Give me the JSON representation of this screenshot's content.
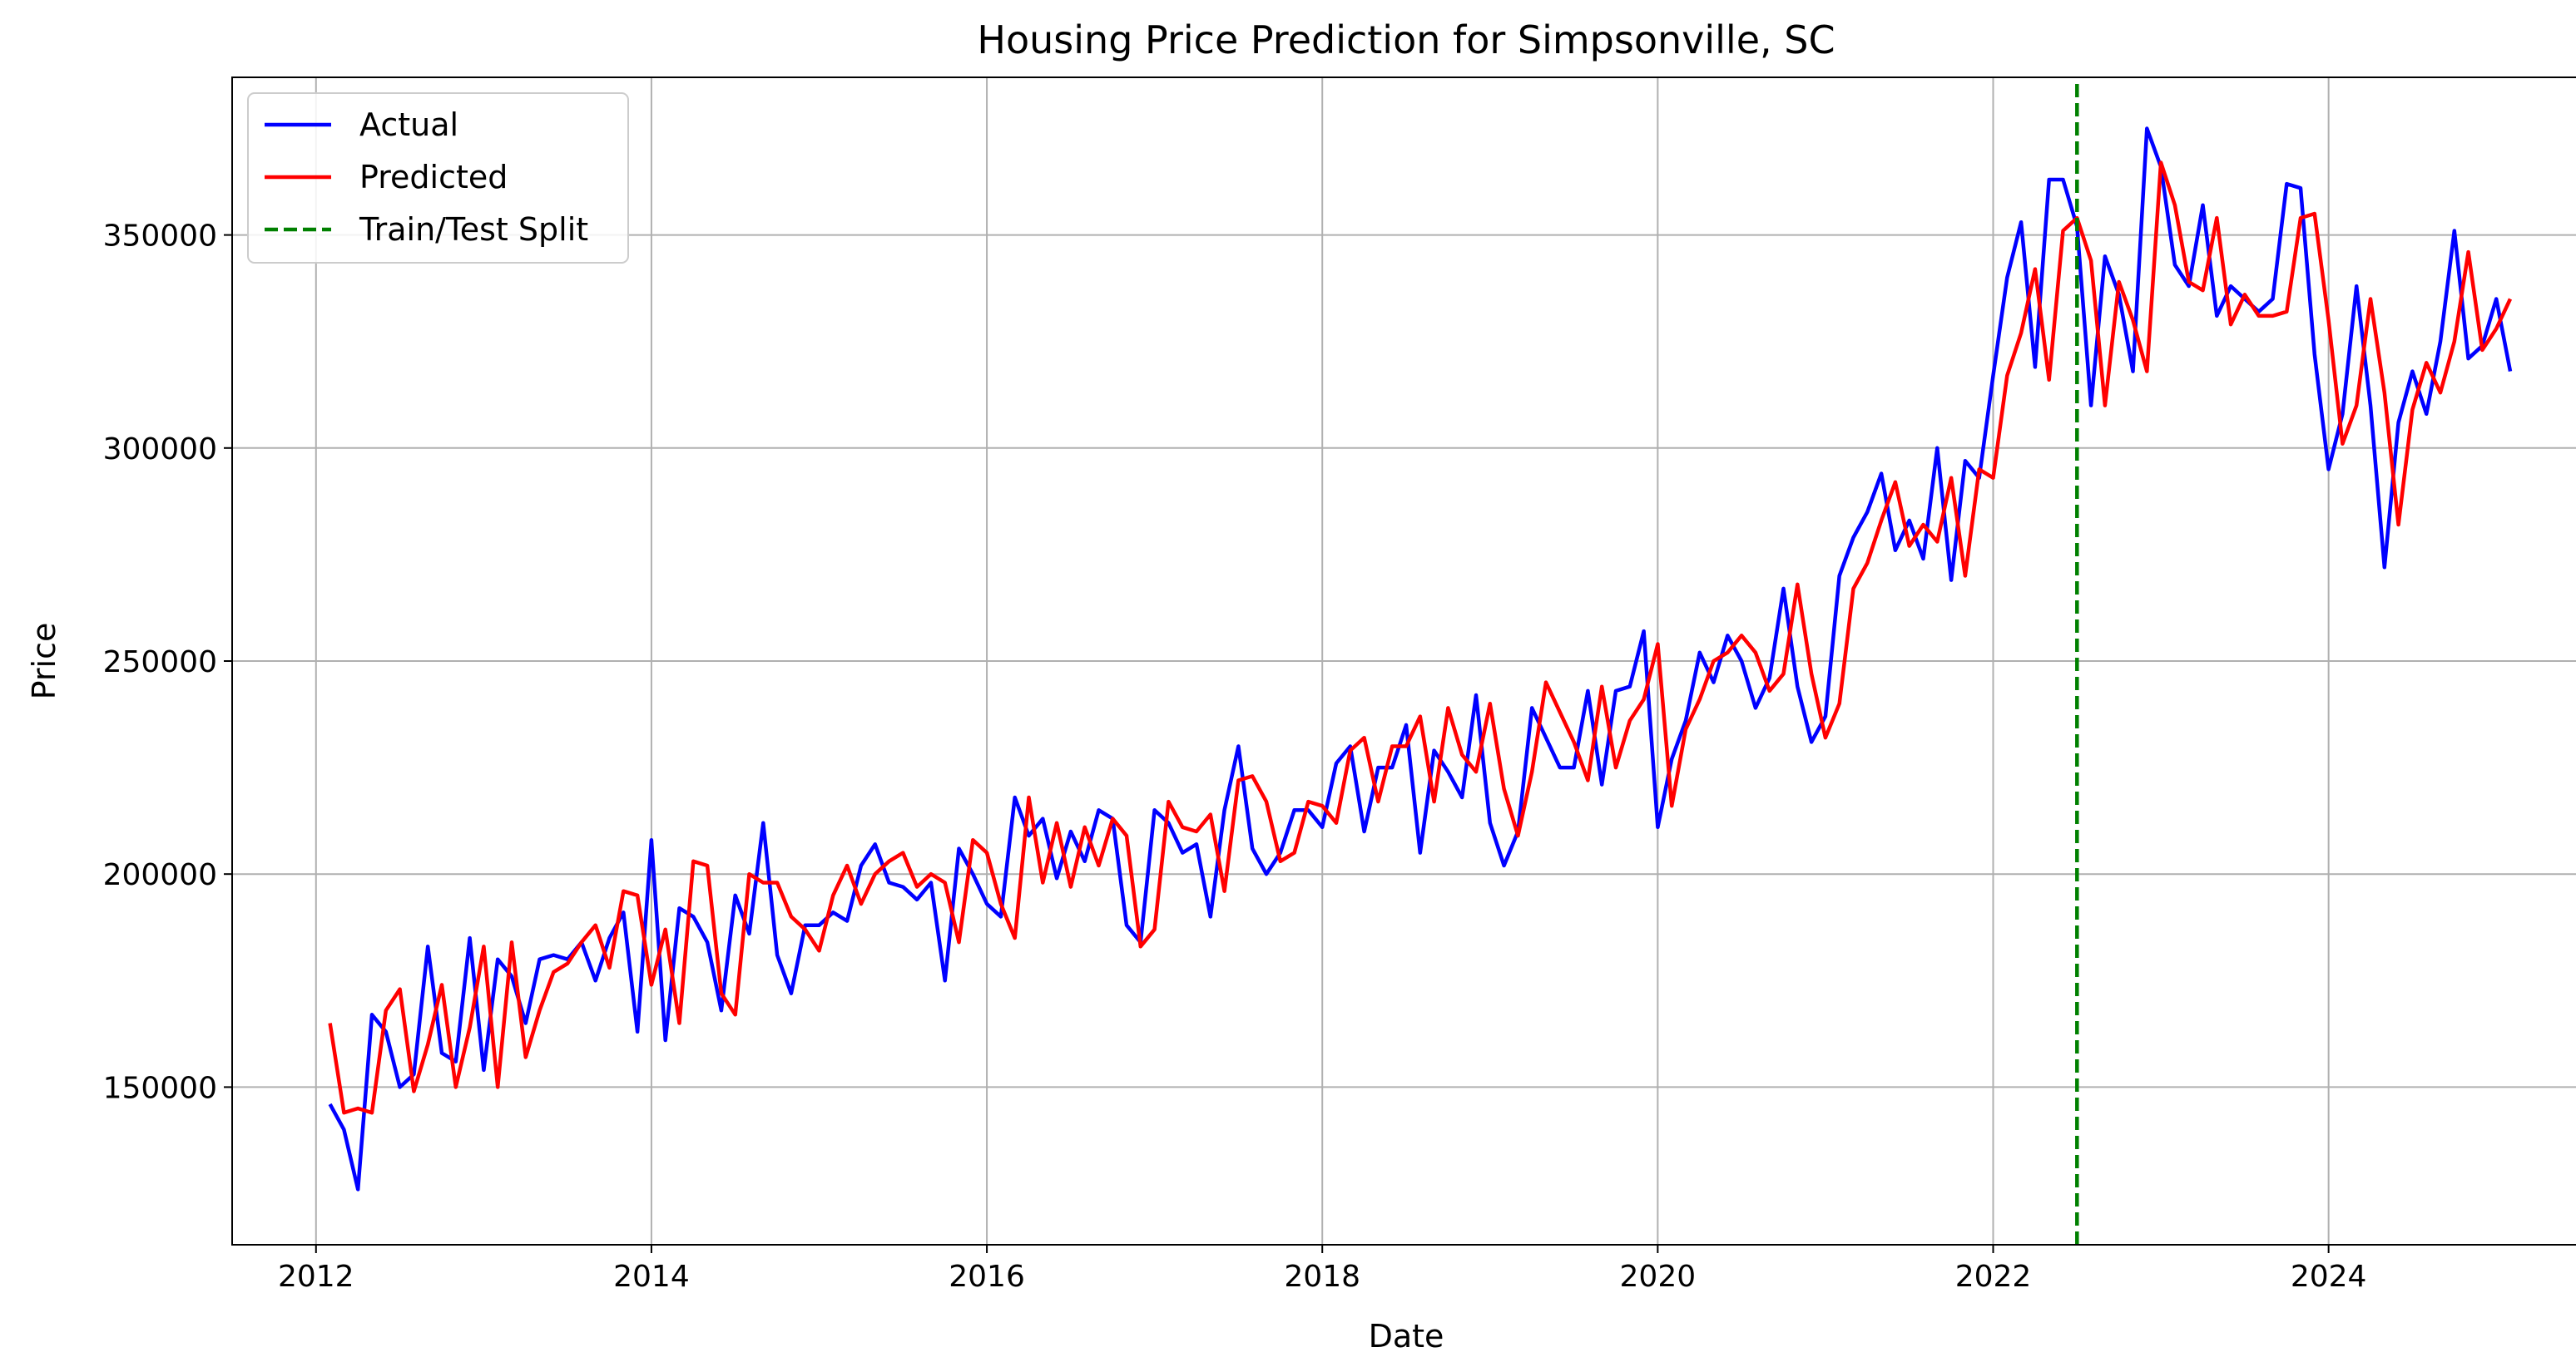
{
  "chart_data": {
    "type": "line",
    "title": "Housing Price Prediction for Simpsonville, SC",
    "xlabel": "Date",
    "ylabel": "Price",
    "x_axis_type": "date",
    "xlim": [
      "2011-07-01",
      "2025-07-01"
    ],
    "ylim": [
      113000,
      387000
    ],
    "x_ticks": [
      "2012",
      "2014",
      "2016",
      "2018",
      "2020",
      "2022",
      "2024"
    ],
    "y_ticks": [
      "150000",
      "200000",
      "250000",
      "300000",
      "350000"
    ],
    "grid": true,
    "legend_position": "top-left",
    "series": [
      {
        "name": "Actual",
        "color": "#0000ff",
        "x": [
          "2012-02",
          "2012-03",
          "2012-04",
          "2012-05",
          "2012-06",
          "2012-07",
          "2012-08",
          "2012-09",
          "2012-10",
          "2012-11",
          "2012-12",
          "2013-01",
          "2013-02",
          "2013-03",
          "2013-04",
          "2013-05",
          "2013-06",
          "2013-07",
          "2013-08",
          "2013-09",
          "2013-10",
          "2013-11",
          "2013-12",
          "2014-01",
          "2014-02",
          "2014-03",
          "2014-04",
          "2014-05",
          "2014-06",
          "2014-07",
          "2014-08",
          "2014-09",
          "2014-10",
          "2014-11",
          "2014-12",
          "2015-01",
          "2015-02",
          "2015-03",
          "2015-04",
          "2015-05",
          "2015-06",
          "2015-07",
          "2015-08",
          "2015-09",
          "2015-10",
          "2015-11",
          "2015-12",
          "2016-01",
          "2016-02",
          "2016-03",
          "2016-04",
          "2016-05",
          "2016-06",
          "2016-07",
          "2016-08",
          "2016-09",
          "2016-10",
          "2016-11",
          "2016-12",
          "2017-01",
          "2017-02",
          "2017-03",
          "2017-04",
          "2017-05",
          "2017-06",
          "2017-07",
          "2017-08",
          "2017-09",
          "2017-10",
          "2017-11",
          "2017-12",
          "2018-01",
          "2018-02",
          "2018-03",
          "2018-04",
          "2018-05",
          "2018-06",
          "2018-07",
          "2018-08",
          "2018-09",
          "2018-10",
          "2018-11",
          "2018-12",
          "2019-01",
          "2019-02",
          "2019-03",
          "2019-04",
          "2019-05",
          "2019-06",
          "2019-07",
          "2019-08",
          "2019-09",
          "2019-10",
          "2019-11",
          "2019-12",
          "2020-01",
          "2020-02",
          "2020-03",
          "2020-04",
          "2020-05",
          "2020-06",
          "2020-07",
          "2020-08",
          "2020-09",
          "2020-10",
          "2020-11",
          "2020-12",
          "2021-01",
          "2021-02",
          "2021-03",
          "2021-04",
          "2021-05",
          "2021-06",
          "2021-07",
          "2021-08",
          "2021-09",
          "2021-10",
          "2021-11",
          "2021-12",
          "2022-01",
          "2022-02",
          "2022-03",
          "2022-04",
          "2022-05",
          "2022-06",
          "2022-07",
          "2022-08",
          "2022-09",
          "2022-10",
          "2022-11",
          "2022-12",
          "2023-01",
          "2023-02",
          "2023-03",
          "2023-04",
          "2023-05",
          "2023-06",
          "2023-07",
          "2023-08",
          "2023-09",
          "2023-10",
          "2023-11",
          "2023-12",
          "2024-01",
          "2024-02",
          "2024-03",
          "2024-04",
          "2024-05",
          "2024-06",
          "2024-07",
          "2024-08",
          "2024-09",
          "2024-10",
          "2024-11",
          "2024-12",
          "2025-01",
          "2025-02"
        ],
        "y": [
          146000,
          140000,
          126000,
          167000,
          163000,
          150000,
          153000,
          183000,
          158000,
          156000,
          185000,
          154000,
          180000,
          176000,
          165000,
          180000,
          181000,
          180000,
          184000,
          175000,
          185000,
          191000,
          163000,
          208000,
          161000,
          192000,
          190000,
          184000,
          168000,
          195000,
          186000,
          212000,
          181000,
          172000,
          188000,
          188000,
          191000,
          189000,
          202000,
          207000,
          198000,
          197000,
          194000,
          198000,
          175000,
          206000,
          200000,
          193000,
          190000,
          218000,
          209000,
          213000,
          199000,
          210000,
          203000,
          215000,
          213000,
          188000,
          184000,
          215000,
          212000,
          205000,
          207000,
          190000,
          215000,
          230000,
          206000,
          200000,
          205000,
          215000,
          215000,
          211000,
          226000,
          230000,
          210000,
          225000,
          225000,
          235000,
          205000,
          229000,
          224000,
          218000,
          242000,
          212000,
          202000,
          210000,
          239000,
          232000,
          225000,
          225000,
          243000,
          221000,
          243000,
          244000,
          257000,
          211000,
          227000,
          236000,
          252000,
          245000,
          256000,
          250000,
          239000,
          246000,
          267000,
          244000,
          231000,
          237000,
          270000,
          279000,
          285000,
          294000,
          276000,
          283000,
          274000,
          300000,
          269000,
          297000,
          293000,
          317000,
          340000,
          353000,
          319000,
          363000,
          363000,
          352000,
          310000,
          345000,
          336000,
          318000,
          375000,
          366000,
          343000,
          338000,
          357000,
          331000,
          338000,
          335000,
          332000,
          335000,
          362000,
          361000,
          322000,
          295000,
          308000,
          338000,
          310000,
          272000,
          306000,
          318000,
          308000,
          325000,
          351000,
          321000,
          324000,
          335000,
          318000
        ]
      },
      {
        "name": "Predicted",
        "color": "#ff0000",
        "x": [
          "2012-02",
          "2012-03",
          "2012-04",
          "2012-05",
          "2012-06",
          "2012-07",
          "2012-08",
          "2012-09",
          "2012-10",
          "2012-11",
          "2012-12",
          "2013-01",
          "2013-02",
          "2013-03",
          "2013-04",
          "2013-05",
          "2013-06",
          "2013-07",
          "2013-08",
          "2013-09",
          "2013-10",
          "2013-11",
          "2013-12",
          "2014-01",
          "2014-02",
          "2014-03",
          "2014-04",
          "2014-05",
          "2014-06",
          "2014-07",
          "2014-08",
          "2014-09",
          "2014-10",
          "2014-11",
          "2014-12",
          "2015-01",
          "2015-02",
          "2015-03",
          "2015-04",
          "2015-05",
          "2015-06",
          "2015-07",
          "2015-08",
          "2015-09",
          "2015-10",
          "2015-11",
          "2015-12",
          "2016-01",
          "2016-02",
          "2016-03",
          "2016-04",
          "2016-05",
          "2016-06",
          "2016-07",
          "2016-08",
          "2016-09",
          "2016-10",
          "2016-11",
          "2016-12",
          "2017-01",
          "2017-02",
          "2017-03",
          "2017-04",
          "2017-05",
          "2017-06",
          "2017-07",
          "2017-08",
          "2017-09",
          "2017-10",
          "2017-11",
          "2017-12",
          "2018-01",
          "2018-02",
          "2018-03",
          "2018-04",
          "2018-05",
          "2018-06",
          "2018-07",
          "2018-08",
          "2018-09",
          "2018-10",
          "2018-11",
          "2018-12",
          "2019-01",
          "2019-02",
          "2019-03",
          "2019-04",
          "2019-05",
          "2019-06",
          "2019-07",
          "2019-08",
          "2019-09",
          "2019-10",
          "2019-11",
          "2019-12",
          "2020-01",
          "2020-02",
          "2020-03",
          "2020-04",
          "2020-05",
          "2020-06",
          "2020-07",
          "2020-08",
          "2020-09",
          "2020-10",
          "2020-11",
          "2020-12",
          "2021-01",
          "2021-02",
          "2021-03",
          "2021-04",
          "2021-05",
          "2021-06",
          "2021-07",
          "2021-08",
          "2021-09",
          "2021-10",
          "2021-11",
          "2021-12",
          "2022-01",
          "2022-02",
          "2022-03",
          "2022-04",
          "2022-05",
          "2022-06",
          "2022-07",
          "2022-08",
          "2022-09",
          "2022-10",
          "2022-11",
          "2022-12",
          "2023-01",
          "2023-02",
          "2023-03",
          "2023-04",
          "2023-05",
          "2023-06",
          "2023-07",
          "2023-08",
          "2023-09",
          "2023-10",
          "2023-11",
          "2023-12",
          "2024-01",
          "2024-02",
          "2024-03",
          "2024-04",
          "2024-05",
          "2024-06",
          "2024-07",
          "2024-08",
          "2024-09",
          "2024-10",
          "2024-11",
          "2024-12",
          "2025-01",
          "2025-02"
        ],
        "y": [
          165000,
          144000,
          145000,
          144000,
          168000,
          173000,
          149000,
          160000,
          174000,
          150000,
          164000,
          183000,
          150000,
          184000,
          157000,
          168000,
          177000,
          179000,
          184000,
          188000,
          178000,
          196000,
          195000,
          174000,
          187000,
          165000,
          203000,
          202000,
          172000,
          167000,
          200000,
          198000,
          198000,
          190000,
          187000,
          182000,
          195000,
          202000,
          193000,
          200000,
          203000,
          205000,
          197000,
          200000,
          198000,
          184000,
          208000,
          205000,
          193000,
          185000,
          218000,
          198000,
          212000,
          197000,
          211000,
          202000,
          213000,
          209000,
          183000,
          187000,
          217000,
          211000,
          210000,
          214000,
          196000,
          222000,
          223000,
          217000,
          203000,
          205000,
          217000,
          216000,
          212000,
          229000,
          232000,
          217000,
          230000,
          230000,
          237000,
          217000,
          239000,
          228000,
          224000,
          240000,
          220000,
          209000,
          224000,
          245000,
          238000,
          231000,
          222000,
          244000,
          225000,
          236000,
          241000,
          254000,
          216000,
          234000,
          241000,
          250000,
          252000,
          256000,
          252000,
          243000,
          247000,
          268000,
          247000,
          232000,
          240000,
          267000,
          273000,
          283000,
          292000,
          277000,
          282000,
          278000,
          293000,
          270000,
          295000,
          293000,
          317000,
          327000,
          342000,
          316000,
          351000,
          354000,
          344000,
          310000,
          339000,
          330000,
          318000,
          367000,
          357000,
          339000,
          337000,
          354000,
          329000,
          336000,
          331000,
          331000,
          332000,
          354000,
          355000,
          330000,
          301000,
          310000,
          335000,
          313000,
          282000,
          309000,
          320000,
          313000,
          325000,
          346000,
          323000,
          328000,
          335000
        ]
      },
      {
        "name": "Train/Test Split",
        "color": "#008000",
        "x": [
          "2022-07-01",
          "2022-07-01"
        ],
        "y": [
          113000,
          387000
        ]
      }
    ]
  }
}
